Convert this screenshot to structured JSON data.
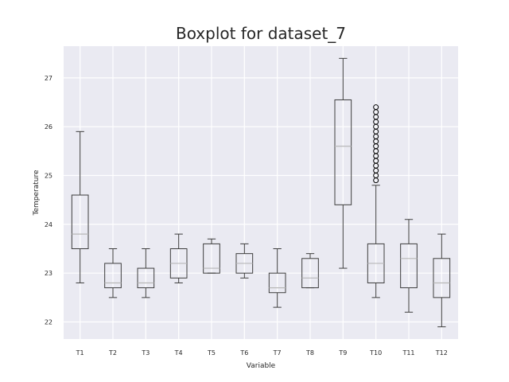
{
  "chart_data": {
    "type": "boxplot",
    "title": "Boxplot for dataset_7",
    "xlabel": "Variable",
    "ylabel": "Temperature",
    "ylim": [
      21.65,
      27.65
    ],
    "yticks": [
      22,
      23,
      24,
      25,
      26,
      27
    ],
    "grid": true,
    "colors": {
      "background": "#eaeaf2",
      "grid": "#ffffff",
      "box": "#3d3d3d",
      "median": "#b8b8b8",
      "flier": "#000000"
    },
    "series": [
      {
        "label": "T1",
        "whisker_low": 22.8,
        "q1": 23.5,
        "median": 23.8,
        "q3": 24.6,
        "whisker_high": 25.9,
        "fliers": []
      },
      {
        "label": "T2",
        "whisker_low": 22.5,
        "q1": 22.7,
        "median": 22.8,
        "q3": 23.2,
        "whisker_high": 23.5,
        "fliers": []
      },
      {
        "label": "T3",
        "whisker_low": 22.5,
        "q1": 22.7,
        "median": 22.8,
        "q3": 23.1,
        "whisker_high": 23.5,
        "fliers": []
      },
      {
        "label": "T4",
        "whisker_low": 22.8,
        "q1": 22.9,
        "median": 23.2,
        "q3": 23.5,
        "whisker_high": 23.8,
        "fliers": []
      },
      {
        "label": "T5",
        "whisker_low": 23.0,
        "q1": 23.0,
        "median": 23.1,
        "q3": 23.6,
        "whisker_high": 23.7,
        "fliers": []
      },
      {
        "label": "T6",
        "whisker_low": 22.9,
        "q1": 23.0,
        "median": 23.2,
        "q3": 23.4,
        "whisker_high": 23.6,
        "fliers": []
      },
      {
        "label": "T7",
        "whisker_low": 22.3,
        "q1": 22.6,
        "median": 22.7,
        "q3": 23.0,
        "whisker_high": 23.5,
        "fliers": []
      },
      {
        "label": "T8",
        "whisker_low": 22.7,
        "q1": 22.7,
        "median": 22.9,
        "q3": 23.3,
        "whisker_high": 23.4,
        "fliers": []
      },
      {
        "label": "T9",
        "whisker_low": 23.1,
        "q1": 24.4,
        "median": 25.6,
        "q3": 26.55,
        "whisker_high": 27.4,
        "fliers": []
      },
      {
        "label": "T10",
        "whisker_low": 22.5,
        "q1": 22.8,
        "median": 23.2,
        "q3": 23.6,
        "whisker_high": 24.8,
        "fliers": [
          24.9,
          25.0,
          25.1,
          25.2,
          25.3,
          25.4,
          25.5,
          25.6,
          25.7,
          25.8,
          25.9,
          26.0,
          26.1,
          26.2,
          26.3,
          26.4
        ]
      },
      {
        "label": "T11",
        "whisker_low": 22.2,
        "q1": 22.7,
        "median": 23.3,
        "q3": 23.6,
        "whisker_high": 24.1,
        "fliers": []
      },
      {
        "label": "T12",
        "whisker_low": 21.9,
        "q1": 22.5,
        "median": 22.8,
        "q3": 23.3,
        "whisker_high": 23.8,
        "fliers": []
      }
    ]
  }
}
